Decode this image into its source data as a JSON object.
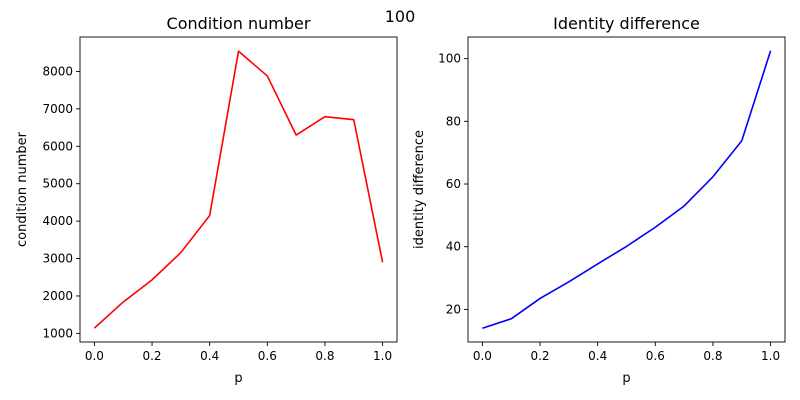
{
  "suptitle": "100",
  "chart_data": [
    {
      "type": "line",
      "title": "Condition number",
      "xlabel": "p",
      "ylabel": "condition number",
      "x": [
        0.0,
        0.1,
        0.2,
        0.3,
        0.4,
        0.5,
        0.6,
        0.7,
        0.8,
        0.9,
        1.0
      ],
      "series": [
        {
          "color": "#ff0000",
          "values": [
            1140,
            1840,
            2430,
            3160,
            4150,
            8540,
            7880,
            6300,
            6790,
            6710,
            2900
          ]
        }
      ],
      "xlim": [
        -0.05,
        1.05
      ],
      "ylim": [
        770,
        8920
      ],
      "xticks": [
        0.0,
        0.2,
        0.4,
        0.6,
        0.8,
        1.0
      ],
      "xtick_labels": [
        "0.0",
        "0.2",
        "0.4",
        "0.6",
        "0.8",
        "1.0"
      ],
      "yticks": [
        1000,
        2000,
        3000,
        4000,
        5000,
        6000,
        7000,
        8000
      ],
      "ytick_labels": [
        "1000",
        "2000",
        "3000",
        "4000",
        "5000",
        "6000",
        "7000",
        "8000"
      ],
      "grid": false
    },
    {
      "type": "line",
      "title": "Identity difference",
      "xlabel": "p",
      "ylabel": "identity difference",
      "x": [
        0.0,
        0.1,
        0.2,
        0.3,
        0.4,
        0.5,
        0.6,
        0.7,
        0.8,
        0.9,
        1.0
      ],
      "series": [
        {
          "color": "#0000ff",
          "values": [
            14.0,
            17.0,
            23.5,
            28.8,
            34.5,
            40.1,
            46.2,
            53.0,
            62.3,
            73.8,
            102.5
          ]
        }
      ],
      "xlim": [
        -0.05,
        1.05
      ],
      "ylim": [
        9.6,
        106.9
      ],
      "xticks": [
        0.0,
        0.2,
        0.4,
        0.6,
        0.8,
        1.0
      ],
      "xtick_labels": [
        "0.0",
        "0.2",
        "0.4",
        "0.6",
        "0.8",
        "1.0"
      ],
      "yticks": [
        20,
        40,
        60,
        80,
        100
      ],
      "ytick_labels": [
        "20",
        "40",
        "60",
        "80",
        "100"
      ],
      "grid": false
    }
  ]
}
